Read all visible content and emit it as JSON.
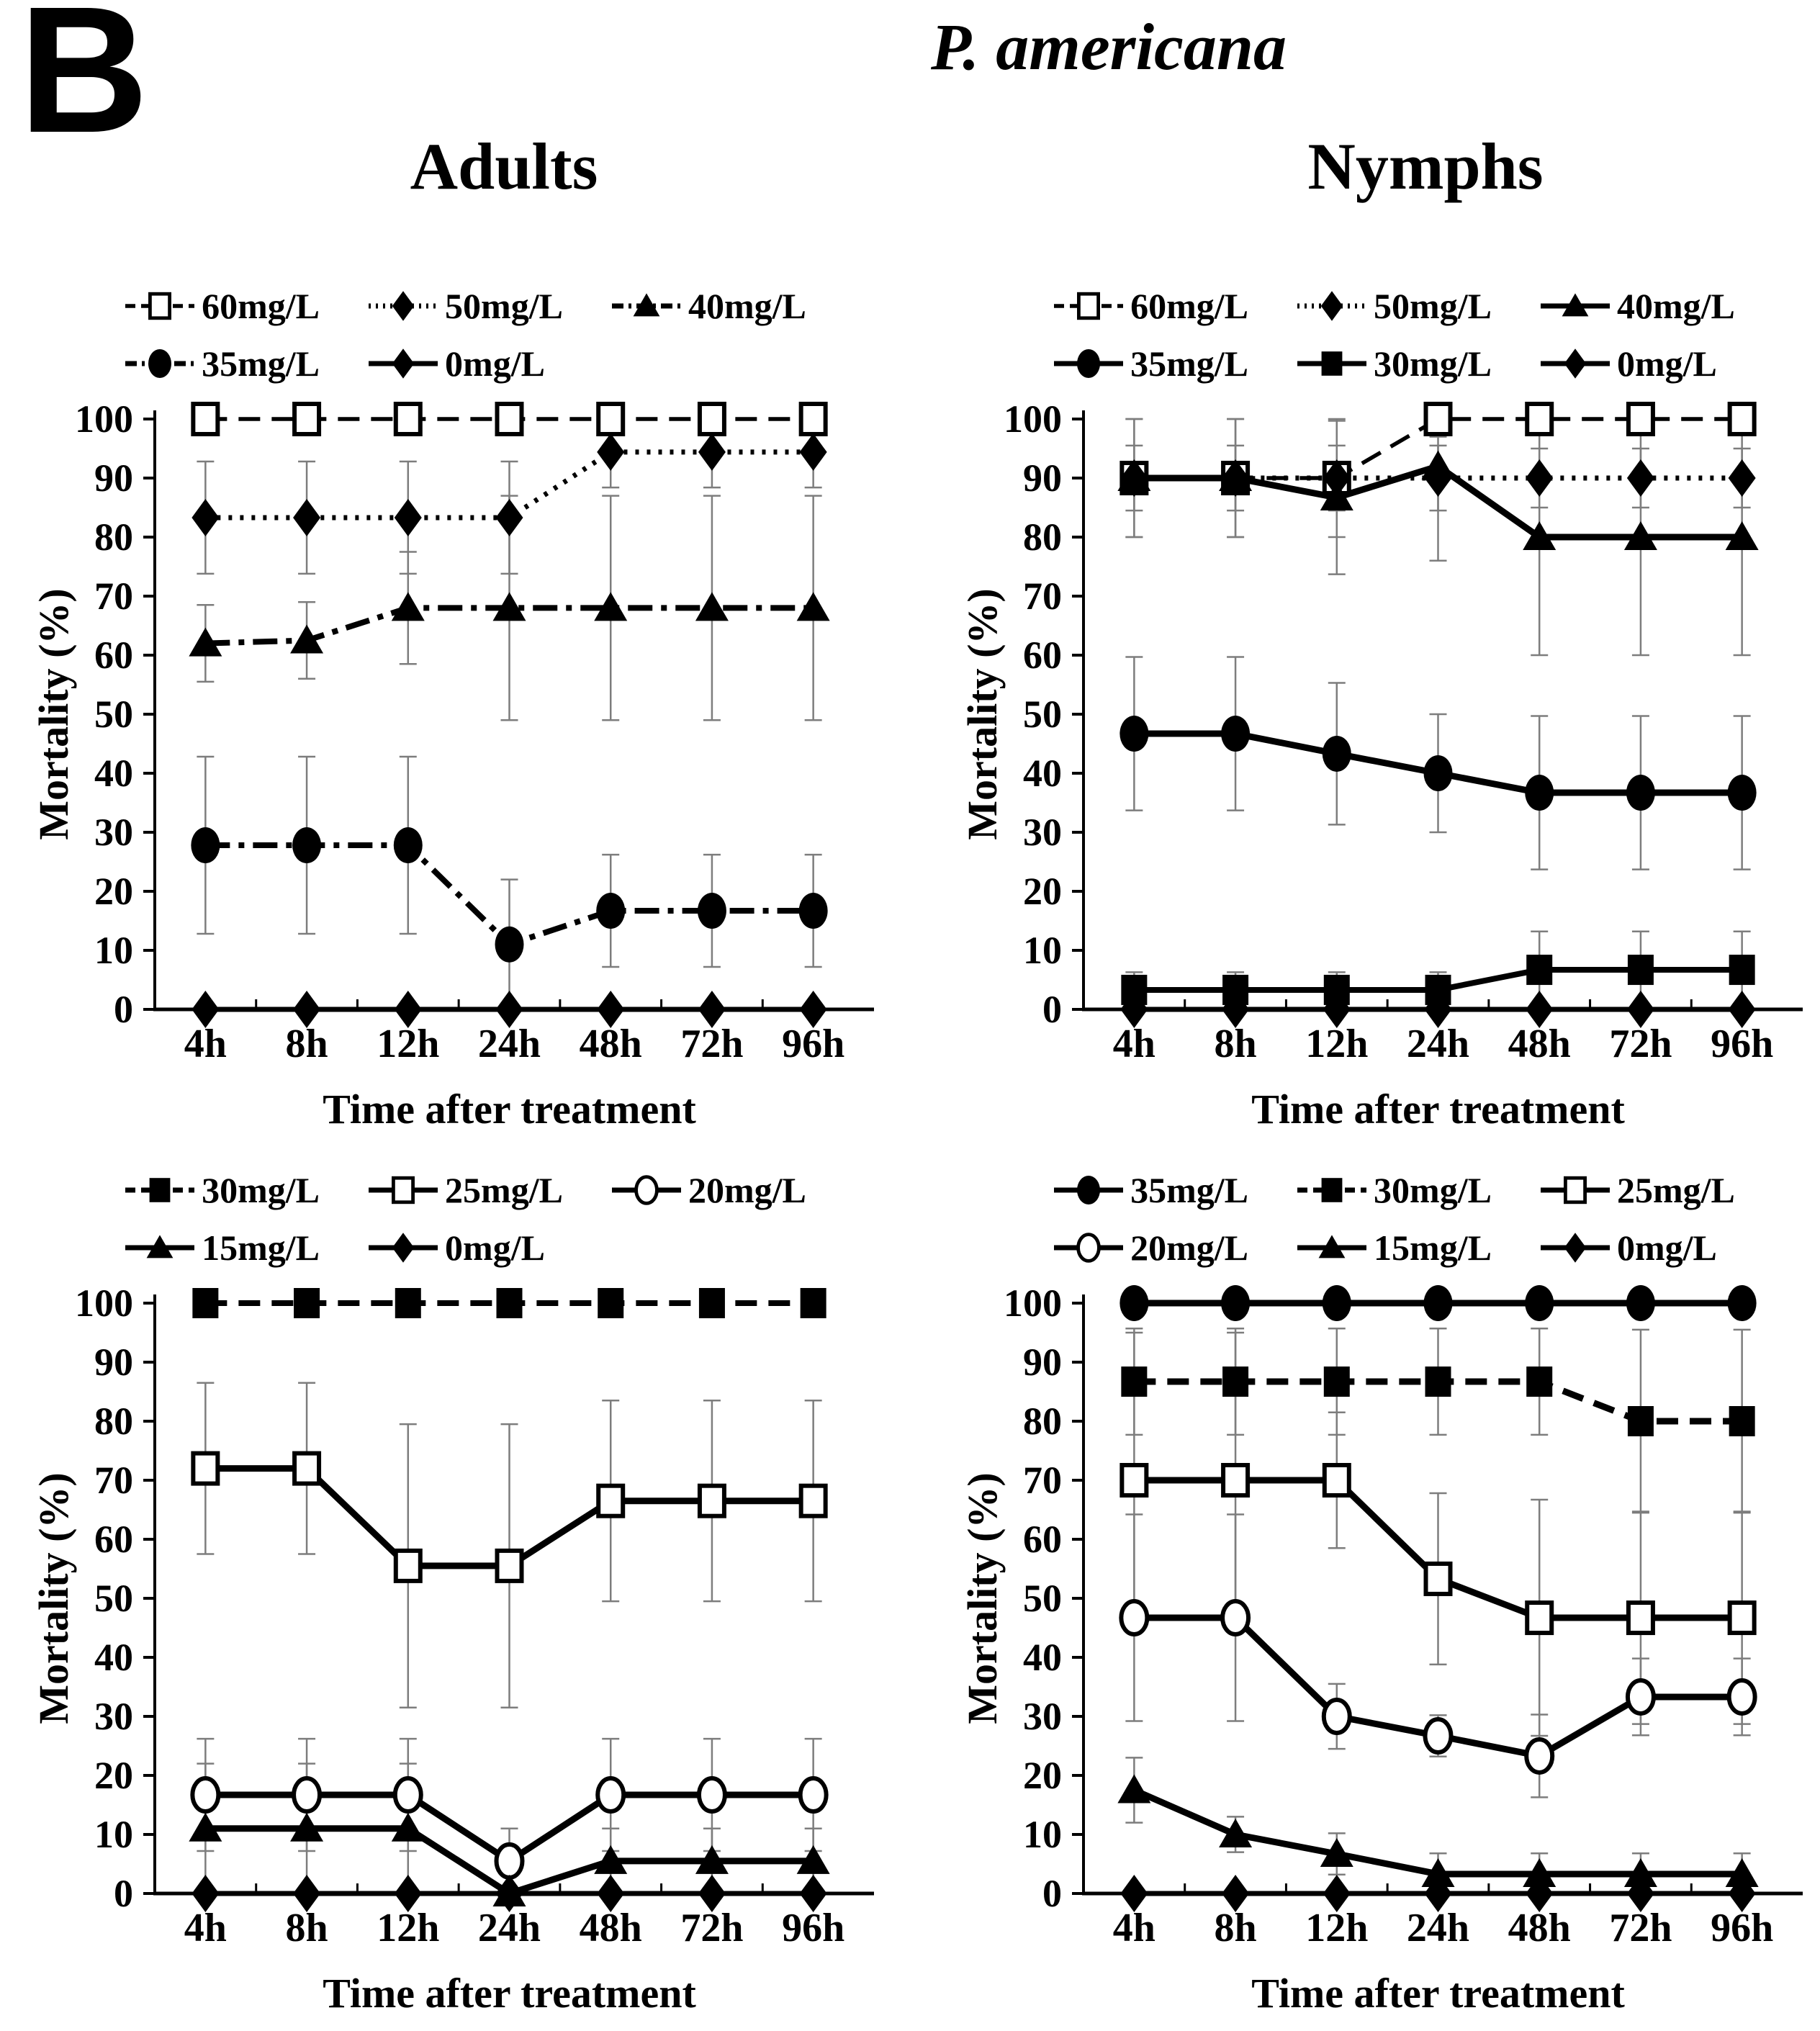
{
  "figure": {
    "panel_label": "B",
    "title": "P. americana",
    "column_titles": [
      "Adults",
      "Nymphs"
    ],
    "x_axis_label": "Time after treatment",
    "y_axis_label": "Mortality (%)"
  },
  "chart_data": [
    {
      "id": "adults-upper",
      "column": "Adults",
      "type": "line",
      "title": "Adults",
      "xlabel": "Time after treatment",
      "ylabel": "Mortality (%)",
      "ylim": [
        0,
        100
      ],
      "ytick_step": 10,
      "grid": false,
      "legend_position": "top",
      "categories": [
        "4h",
        "8h",
        "12h",
        "24h",
        "48h",
        "72h",
        "96h"
      ],
      "series": [
        {
          "name": "60mg/L",
          "marker": "open-square",
          "line": "dashed",
          "lw": 5.5,
          "values": [
            100,
            100,
            100,
            100,
            100,
            100,
            100
          ],
          "err": [
            0,
            0,
            0,
            0,
            0,
            0,
            0
          ]
        },
        {
          "name": "50mg/L",
          "marker": "filled-diamond",
          "line": "dotted",
          "lw": 7,
          "values": [
            83.3,
            83.3,
            83.3,
            83.3,
            94.4,
            94.4,
            94.4
          ],
          "err": [
            9.5,
            9.5,
            9.5,
            9.5,
            6,
            6,
            6
          ]
        },
        {
          "name": "40mg/L",
          "marker": "filled-triangle",
          "line": "dashdot",
          "lw": 8,
          "values": [
            62,
            62.5,
            68,
            68,
            68,
            68,
            68
          ],
          "err": [
            6.5,
            6.5,
            9.5,
            19,
            19,
            19,
            19
          ]
        },
        {
          "name": "35mg/L",
          "marker": "filled-circle",
          "line": "dashdot",
          "lw": 8,
          "values": [
            27.8,
            27.8,
            27.8,
            11,
            16.7,
            16.7,
            16.7
          ],
          "err": [
            15,
            15,
            15,
            11,
            9.5,
            9.5,
            9.5
          ]
        },
        {
          "name": "0mg/L",
          "marker": "filled-diamond",
          "line": "solid",
          "lw": 7,
          "values": [
            0,
            0,
            0,
            0,
            0,
            0,
            0
          ],
          "err": [
            0,
            0,
            0,
            0,
            0,
            0,
            0
          ]
        }
      ]
    },
    {
      "id": "nymphs-upper",
      "column": "Nymphs",
      "type": "line",
      "title": "Nymphs",
      "xlabel": "Time after treatment",
      "ylabel": "Mortality (%)",
      "ylim": [
        0,
        100
      ],
      "ytick_step": 10,
      "grid": false,
      "legend_position": "top",
      "categories": [
        "4h",
        "8h",
        "12h",
        "24h",
        "48h",
        "72h",
        "96h"
      ],
      "series": [
        {
          "name": "60mg/L",
          "marker": "open-square",
          "line": "dashed",
          "lw": 5.5,
          "values": [
            90,
            90,
            90,
            100,
            100,
            100,
            100
          ],
          "err": [
            10,
            10,
            10,
            3,
            0,
            0,
            0
          ]
        },
        {
          "name": "50mg/L",
          "marker": "filled-diamond",
          "line": "dotted",
          "lw": 7,
          "values": [
            90,
            90,
            90,
            90,
            90,
            90,
            90
          ],
          "err": [
            5.5,
            5.5,
            5.5,
            5.5,
            5,
            5,
            5
          ]
        },
        {
          "name": "40mg/L",
          "marker": "filled-triangle",
          "line": "solid",
          "lw": 9,
          "values": [
            90,
            90,
            86.7,
            92,
            80,
            80,
            80
          ],
          "err": [
            10,
            10,
            13,
            16,
            20,
            20,
            20
          ]
        },
        {
          "name": "35mg/L",
          "marker": "filled-circle",
          "line": "solid",
          "lw": 9,
          "values": [
            46.7,
            46.7,
            43.3,
            40,
            36.7,
            36.7,
            36.7
          ],
          "err": [
            13,
            13,
            12,
            10,
            13,
            13,
            13
          ]
        },
        {
          "name": "30mg/L",
          "marker": "filled-square",
          "line": "solid",
          "lw": 8,
          "values": [
            3.3,
            3.3,
            3.3,
            3.3,
            6.7,
            6.7,
            6.7
          ],
          "err": [
            3,
            3,
            3,
            3,
            6.5,
            6.5,
            6.5
          ]
        },
        {
          "name": "0mg/L",
          "marker": "filled-diamond",
          "line": "solid",
          "lw": 7,
          "values": [
            0,
            0,
            0,
            0,
            0,
            0,
            0
          ],
          "err": [
            0,
            0,
            0,
            0,
            0,
            0,
            0
          ]
        }
      ]
    },
    {
      "id": "adults-lower",
      "column": "Adults",
      "type": "line",
      "title": "Adults",
      "xlabel": "Time after treatment",
      "ylabel": "Mortality (%)",
      "ylim": [
        0,
        100
      ],
      "ytick_step": 10,
      "grid": false,
      "legend_position": "top",
      "categories": [
        "4h",
        "8h",
        "12h",
        "24h",
        "48h",
        "72h",
        "96h"
      ],
      "series": [
        {
          "name": "30mg/L",
          "marker": "filled-square",
          "line": "dashed",
          "lw": 8,
          "values": [
            100,
            100,
            100,
            100,
            100,
            100,
            100
          ],
          "err": [
            0,
            0,
            0,
            0,
            0,
            0,
            0
          ]
        },
        {
          "name": "25mg/L",
          "marker": "open-square",
          "line": "solid",
          "lw": 9,
          "values": [
            72,
            72,
            55.5,
            55.5,
            66.5,
            66.5,
            66.5
          ],
          "err": [
            14.5,
            14.5,
            24,
            24,
            17,
            17,
            17
          ]
        },
        {
          "name": "20mg/L",
          "marker": "open-circle",
          "line": "solid",
          "lw": 9,
          "values": [
            16.7,
            16.7,
            16.7,
            5.5,
            16.7,
            16.7,
            16.7
          ],
          "err": [
            9.5,
            9.5,
            9.5,
            5.5,
            9.5,
            9.5,
            9.5
          ]
        },
        {
          "name": "15mg/L",
          "marker": "filled-triangle",
          "line": "solid",
          "lw": 9,
          "values": [
            11,
            11,
            11,
            0,
            5.5,
            5.5,
            5.5
          ],
          "err": [
            11,
            11,
            11,
            0,
            5.5,
            5.5,
            5.5
          ]
        },
        {
          "name": "0mg/L",
          "marker": "filled-diamond",
          "line": "solid",
          "lw": 7,
          "values": [
            0,
            0,
            0,
            0,
            0,
            0,
            0
          ],
          "err": [
            0,
            0,
            0,
            0,
            0,
            0,
            0
          ]
        }
      ]
    },
    {
      "id": "nymphs-lower",
      "column": "Nymphs",
      "type": "line",
      "title": "Nymphs",
      "xlabel": "Time after treatment",
      "ylabel": "Mortality (%)",
      "ylim": [
        0,
        100
      ],
      "ytick_step": 10,
      "grid": false,
      "legend_position": "top",
      "categories": [
        "4h",
        "8h",
        "12h",
        "24h",
        "48h",
        "72h",
        "96h"
      ],
      "series": [
        {
          "name": "35mg/L",
          "marker": "filled-circle",
          "line": "solid",
          "lw": 9,
          "values": [
            100,
            100,
            100,
            100,
            100,
            100,
            100
          ],
          "err": [
            0,
            0,
            0,
            0,
            0,
            0,
            0
          ]
        },
        {
          "name": "30mg/L",
          "marker": "filled-square",
          "line": "dashed",
          "lw": 9,
          "values": [
            86.7,
            86.7,
            86.7,
            86.7,
            86.7,
            80,
            80
          ],
          "err": [
            9,
            9,
            9,
            9,
            9,
            15.5,
            15.5
          ]
        },
        {
          "name": "25mg/L",
          "marker": "open-square",
          "line": "solid",
          "lw": 9,
          "values": [
            70,
            70,
            70,
            53.3,
            46.7,
            46.7,
            46.7
          ],
          "err": [
            25,
            25,
            11.5,
            14.5,
            20,
            18,
            18
          ]
        },
        {
          "name": "20mg/L",
          "marker": "open-circle",
          "line": "solid",
          "lw": 9,
          "values": [
            46.7,
            46.7,
            30,
            26.7,
            23.3,
            33.3,
            33.3
          ],
          "err": [
            17.5,
            17.5,
            5.5,
            3.5,
            7,
            6.5,
            6.5
          ]
        },
        {
          "name": "15mg/L",
          "marker": "filled-triangle",
          "line": "solid",
          "lw": 9,
          "values": [
            17.5,
            10,
            6.7,
            3.3,
            3.3,
            3.3,
            3.3
          ],
          "err": [
            5.5,
            3,
            3.5,
            3.5,
            3.5,
            3.5,
            3.5
          ]
        },
        {
          "name": "0mg/L",
          "marker": "filled-diamond",
          "line": "solid",
          "lw": 7,
          "values": [
            0,
            0,
            0,
            0,
            0,
            0,
            0
          ],
          "err": [
            0,
            0,
            0,
            0,
            0,
            0,
            0
          ]
        }
      ]
    }
  ],
  "style": {
    "ink": "#000000",
    "background": "#ffffff",
    "error_bar_color": "#7d7d7d"
  }
}
